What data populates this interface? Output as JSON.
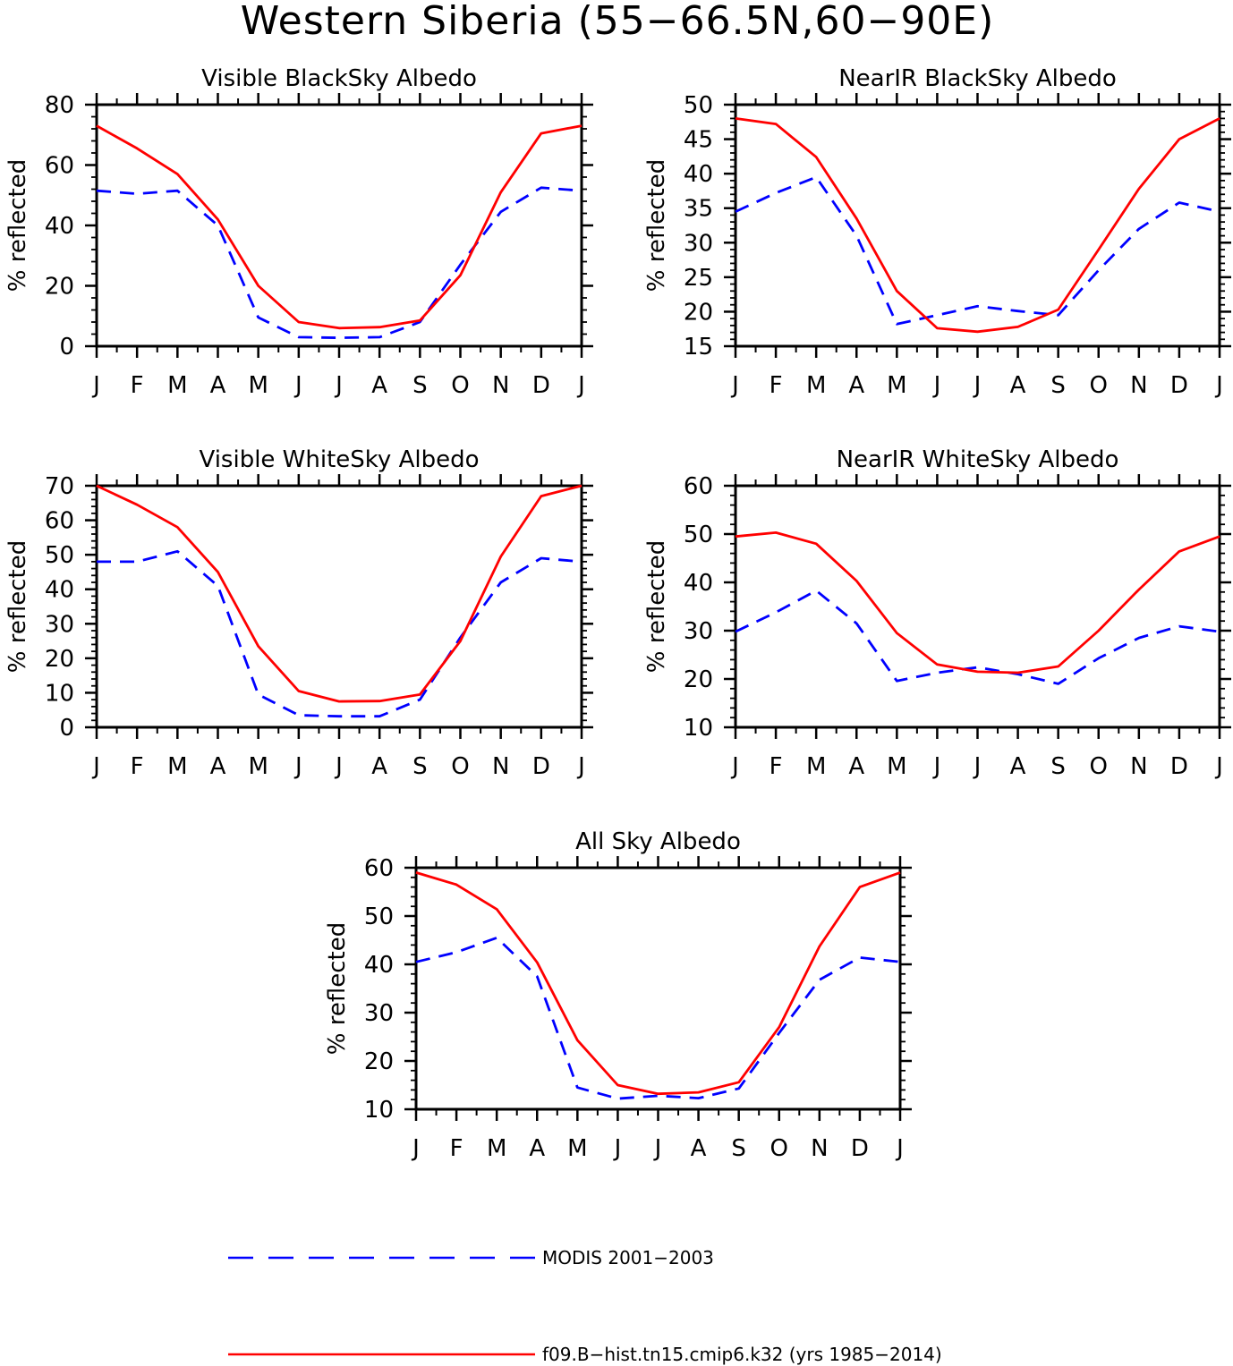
{
  "page_title": "Western Siberia (55−66.5N,60−90E)",
  "colors": {
    "model": "#ff0000",
    "modis": "#0000ff",
    "axes": "#000000"
  },
  "legend": [
    {
      "label": "MODIS 2001−2003",
      "style": "dashed",
      "color": "#0000ff"
    },
    {
      "label": "f09.B−hist.tn15.cmip6.k32 (yrs 1985−2014)",
      "style": "solid",
      "color": "#ff0000"
    }
  ],
  "chart_data": [
    {
      "type": "line",
      "title": "Visible BlackSky Albedo",
      "xlabel": "",
      "ylabel": "% reflected",
      "categories": [
        "J",
        "F",
        "M",
        "A",
        "M",
        "J",
        "J",
        "A",
        "S",
        "O",
        "N",
        "D",
        "J"
      ],
      "ylim": [
        0,
        80
      ],
      "yticks": [
        0,
        20,
        40,
        60,
        80
      ],
      "series": [
        {
          "name": "MODIS 2001−2003",
          "style": "dashed",
          "color": "#0000ff",
          "values": [
            51.5,
            50.5,
            51.5,
            40,
            9.5,
            3,
            2.8,
            3,
            8,
            27,
            44.5,
            52.5,
            51.5
          ]
        },
        {
          "name": "f09.B−hist.tn15.cmip6.k32 (yrs 1985−2014)",
          "style": "solid",
          "color": "#ff0000",
          "values": [
            73,
            65.5,
            57,
            42,
            20,
            8,
            6,
            6.3,
            8.5,
            23.5,
            51,
            70.5,
            73
          ]
        }
      ]
    },
    {
      "type": "line",
      "title": "NearIR BlackSky Albedo",
      "xlabel": "",
      "ylabel": "% reflected",
      "categories": [
        "J",
        "F",
        "M",
        "A",
        "M",
        "J",
        "J",
        "A",
        "S",
        "O",
        "N",
        "D",
        "J"
      ],
      "ylim": [
        15,
        50
      ],
      "yticks": [
        15,
        20,
        25,
        30,
        35,
        40,
        45,
        50
      ],
      "series": [
        {
          "name": "MODIS 2001−2003",
          "style": "dashed",
          "color": "#0000ff",
          "values": [
            34.5,
            37.2,
            39.5,
            31,
            18.2,
            19.5,
            20.8,
            20.1,
            19.5,
            26,
            32,
            35.8,
            34.5
          ]
        },
        {
          "name": "f09.B−hist.tn15.cmip6.k32 (yrs 1985−2014)",
          "style": "solid",
          "color": "#ff0000",
          "values": [
            48,
            47.2,
            42.4,
            33.5,
            23,
            17.6,
            17.1,
            17.8,
            20.3,
            29,
            37.8,
            45,
            48
          ]
        }
      ]
    },
    {
      "type": "line",
      "title": "Visible WhiteSky Albedo",
      "xlabel": "",
      "ylabel": "% reflected",
      "categories": [
        "J",
        "F",
        "M",
        "A",
        "M",
        "J",
        "J",
        "A",
        "S",
        "O",
        "N",
        "D",
        "J"
      ],
      "ylim": [
        0,
        70
      ],
      "yticks": [
        0,
        10,
        20,
        30,
        40,
        50,
        60,
        70
      ],
      "series": [
        {
          "name": "MODIS 2001−2003",
          "style": "dashed",
          "color": "#0000ff",
          "values": [
            48,
            48,
            51,
            41,
            9.5,
            3.5,
            3.2,
            3.2,
            8,
            26,
            42,
            49,
            48
          ]
        },
        {
          "name": "f09.B−hist.tn15.cmip6.k32 (yrs 1985−2014)",
          "style": "solid",
          "color": "#ff0000",
          "values": [
            70,
            64.5,
            58,
            45,
            23.5,
            10.5,
            7.5,
            7.6,
            9.5,
            25,
            49.5,
            67,
            70
          ]
        }
      ]
    },
    {
      "type": "line",
      "title": "NearIR WhiteSky Albedo",
      "xlabel": "",
      "ylabel": "% reflected",
      "categories": [
        "J",
        "F",
        "M",
        "A",
        "M",
        "J",
        "J",
        "A",
        "S",
        "O",
        "N",
        "D",
        "J"
      ],
      "ylim": [
        10,
        60
      ],
      "yticks": [
        10,
        20,
        30,
        40,
        50,
        60
      ],
      "series": [
        {
          "name": "MODIS 2001−2003",
          "style": "dashed",
          "color": "#0000ff",
          "values": [
            29.8,
            33.8,
            38.3,
            31.5,
            19.6,
            21.3,
            22.4,
            21,
            19,
            24.3,
            28.5,
            30.9,
            29.8
          ]
        },
        {
          "name": "f09.B−hist.tn15.cmip6.k32 (yrs 1985−2014)",
          "style": "solid",
          "color": "#ff0000",
          "values": [
            49.5,
            50.3,
            48,
            40.3,
            29.5,
            23,
            21.5,
            21.3,
            22.6,
            30,
            38.5,
            46.4,
            49.5
          ]
        }
      ]
    },
    {
      "type": "line",
      "title": "All Sky Albedo",
      "xlabel": "",
      "ylabel": "% reflected",
      "categories": [
        "J",
        "F",
        "M",
        "A",
        "M",
        "J",
        "J",
        "A",
        "S",
        "O",
        "N",
        "D",
        "J"
      ],
      "ylim": [
        10,
        60
      ],
      "yticks": [
        10,
        20,
        30,
        40,
        50,
        60
      ],
      "series": [
        {
          "name": "MODIS 2001−2003",
          "style": "dashed",
          "color": "#0000ff",
          "values": [
            40.5,
            42.5,
            45.5,
            37.5,
            14.5,
            12.2,
            12.8,
            12.3,
            14.3,
            25.8,
            36.8,
            41.4,
            40.5
          ]
        },
        {
          "name": "f09.B−hist.tn15.cmip6.k32 (yrs 1985−2014)",
          "style": "solid",
          "color": "#ff0000",
          "values": [
            59,
            56.5,
            51.4,
            40.4,
            24.3,
            15,
            13.2,
            13.5,
            15.6,
            27,
            43.7,
            56,
            59
          ]
        }
      ]
    }
  ]
}
